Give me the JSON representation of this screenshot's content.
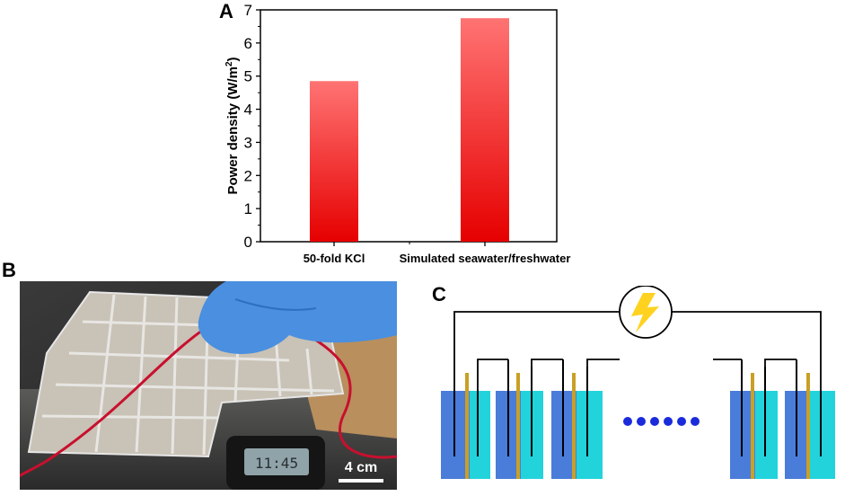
{
  "panels": {
    "a": "A",
    "b": "B",
    "c": "C"
  },
  "chart_data": {
    "type": "bar",
    "categories": [
      "50-fold KCl",
      "Simulated seawater/freshwater"
    ],
    "values": [
      4.85,
      6.75
    ],
    "ylabel_main": "Power density (W/m",
    "ylabel_sup": "2",
    "ylabel_close": ")",
    "ylim": [
      0,
      7
    ],
    "yticks": [
      "0",
      "1",
      "2",
      "3",
      "4",
      "5",
      "6",
      "7"
    ],
    "bar_color_top": "#ff7373",
    "bar_color_bottom": "#e60000",
    "grid": false
  },
  "photo": {
    "scale_bar": "4 cm"
  }
}
